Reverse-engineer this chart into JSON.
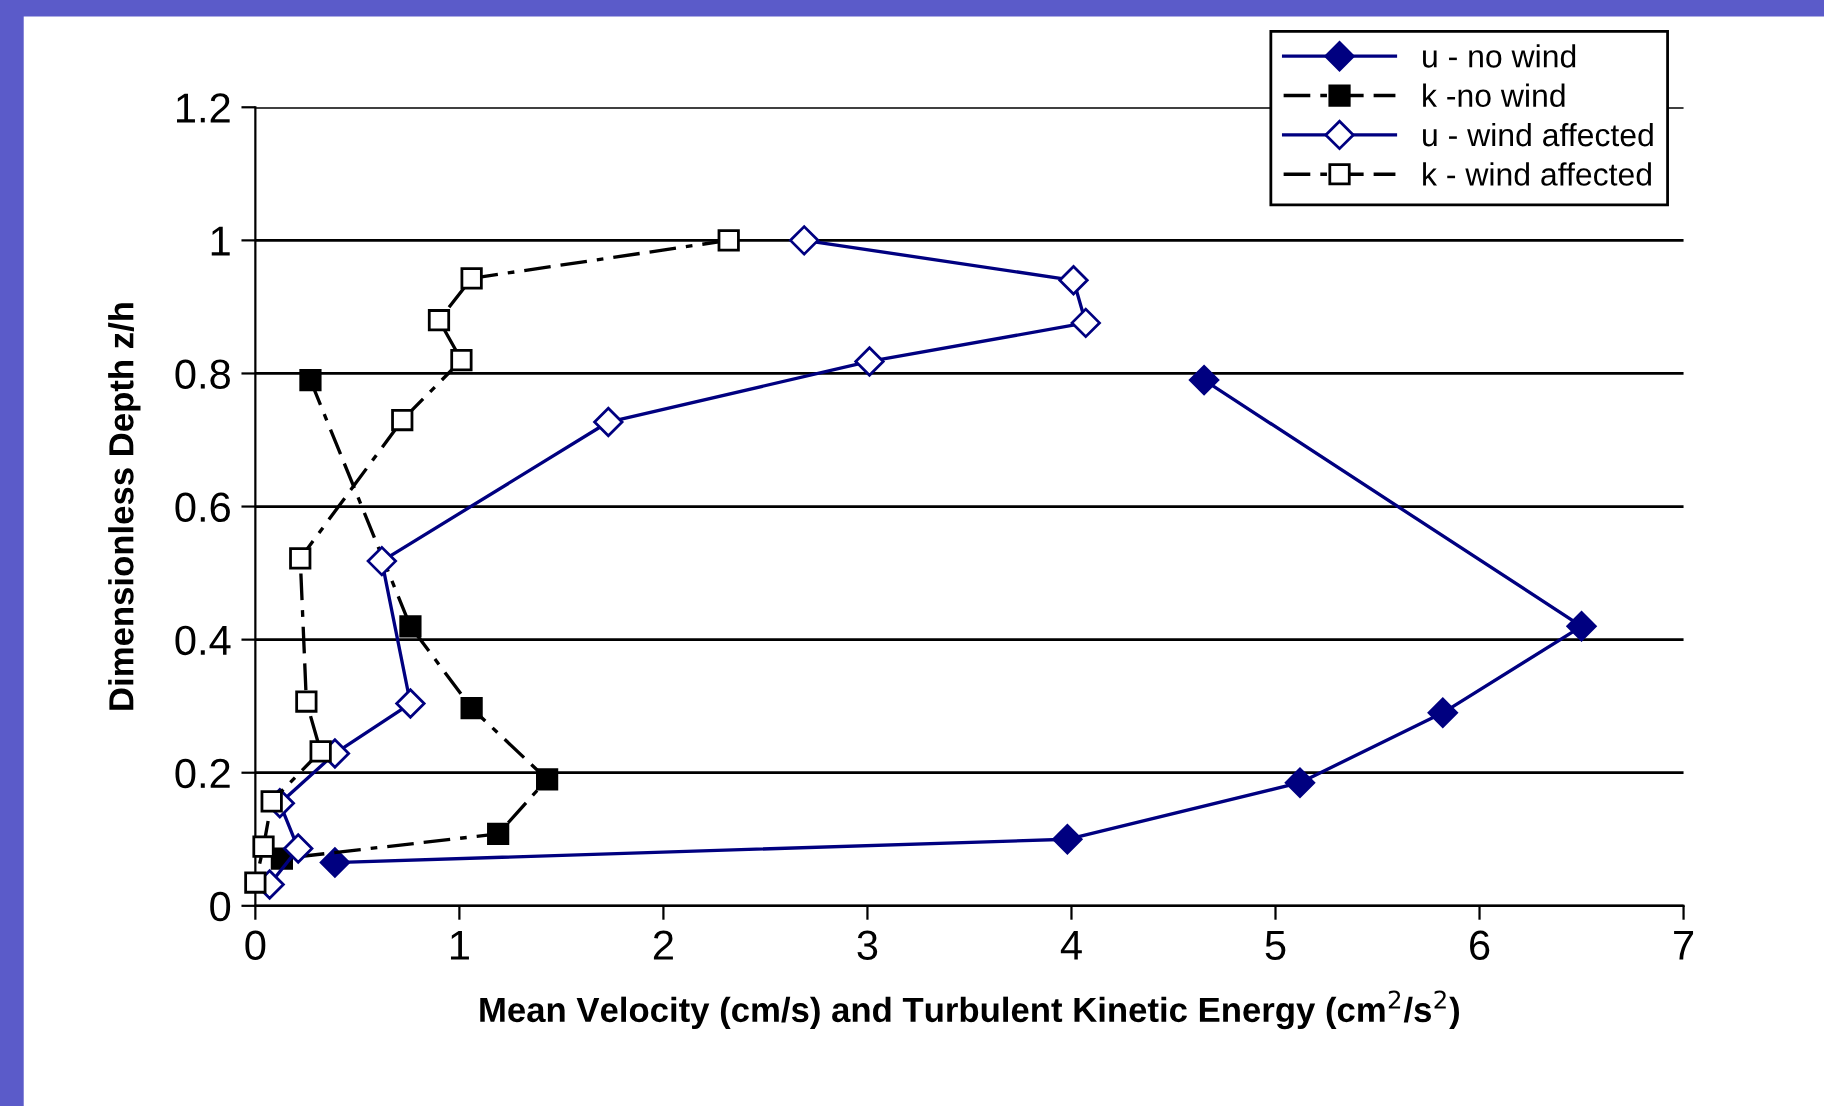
{
  "chart_data": {
    "type": "line",
    "xlabel": "Mean Velocity (cm/s) and Turbulent Kinetic Energy (cm$^{2}$/s$^{2}$)",
    "ylabel": "Dimensionless Depth z/h",
    "xlim": [
      0,
      7
    ],
    "xticks": [
      0,
      1,
      2,
      3,
      4,
      5,
      6,
      7
    ],
    "ylim": [
      0,
      1.2
    ],
    "yticks": [
      0,
      0.2,
      0.4,
      0.6,
      0.8,
      1,
      1.2
    ],
    "grid": "y",
    "legend": "top right",
    "series": [
      {
        "name": "u - no wind",
        "color": "#000080",
        "marker": "diamond",
        "line_style": "solid",
        "x": [
          4.65,
          6.5,
          5.82,
          5.12,
          3.98,
          0.39
        ],
        "values": [
          0.79,
          0.42,
          0.29,
          0.185,
          0.1,
          0.065
        ]
      },
      {
        "name": "k -no wind",
        "color": "#000000",
        "marker": "square",
        "line_style": "dashed",
        "x": [
          0.27,
          0.76,
          1.06,
          1.43,
          1.19,
          0.13
        ],
        "values": [
          0.79,
          0.42,
          0.297,
          0.19,
          0.108,
          0.071
        ]
      },
      {
        "name": "u - wind affected",
        "color": "#000080",
        "marker": "diamond",
        "line_style": "solid",
        "x": [
          2.69,
          4.01,
          4.07,
          3.01,
          1.73,
          0.62,
          0.76,
          0.39,
          0.12,
          0.21,
          0.07
        ],
        "values": [
          1.0,
          0.94,
          0.876,
          0.818,
          0.727,
          0.518,
          0.304,
          0.229,
          0.154,
          0.086,
          0.032
        ]
      },
      {
        "name": "k - wind affected",
        "color": "#000000",
        "marker": "square",
        "line_style": "dashed",
        "x": [
          2.32,
          1.06,
          0.9,
          1.01,
          0.72,
          0.22,
          0.25,
          0.32,
          0.08,
          0.04,
          0.0
        ],
        "values": [
          1.0,
          0.943,
          0.88,
          0.82,
          0.73,
          0.522,
          0.307,
          0.232,
          0.157,
          0.089,
          0.035
        ]
      }
    ]
  }
}
